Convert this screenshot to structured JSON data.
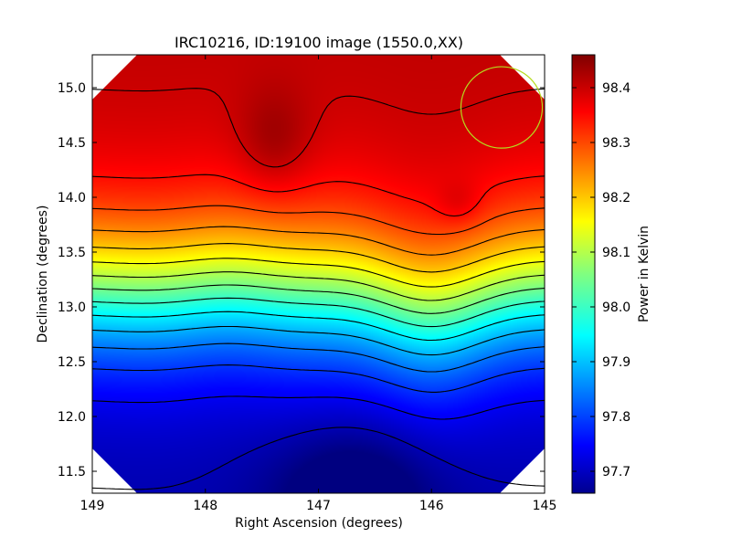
{
  "chart_data": {
    "type": "heatmap",
    "title": "IRC10216, ID:19100 image (1550.0,XX)",
    "xlabel": "Right Ascension (degrees)",
    "ylabel": "Declination (degrees)",
    "xlim": [
      149.0,
      145.0
    ],
    "ylim": [
      11.3,
      15.3
    ],
    "xticks": [
      "149",
      "148",
      "147",
      "146",
      "145"
    ],
    "xtick_values": [
      149,
      148,
      147,
      146,
      145
    ],
    "yticks": [
      "11.5",
      "12.0",
      "12.5",
      "13.0",
      "13.5",
      "14.0",
      "14.5",
      "15.0"
    ],
    "ytick_values": [
      11.5,
      12.0,
      12.5,
      13.0,
      13.5,
      14.0,
      14.5,
      15.0
    ],
    "colorbar": {
      "label": "Power in Kelvin",
      "range": [
        97.66,
        98.46
      ],
      "ticks": [
        "97.7",
        "97.8",
        "97.9",
        "98.0",
        "98.1",
        "98.2",
        "98.3",
        "98.4"
      ],
      "tick_values": [
        97.7,
        97.8,
        97.9,
        98.0,
        98.1,
        98.2,
        98.3,
        98.4
      ]
    },
    "colormap": "jet",
    "features": [
      {
        "kind": "maximum",
        "ra": 147.4,
        "dec": 14.48,
        "value": 98.45
      },
      {
        "kind": "local-maximum",
        "ra": 145.75,
        "dec": 13.95,
        "value": 98.33
      },
      {
        "kind": "minimum",
        "ra": 146.7,
        "dec": 11.32,
        "value": 97.66
      }
    ],
    "beam_circle": {
      "ra": 145.38,
      "dec": 14.82,
      "radius_deg": 0.36,
      "color": "#b4dc1e"
    }
  }
}
